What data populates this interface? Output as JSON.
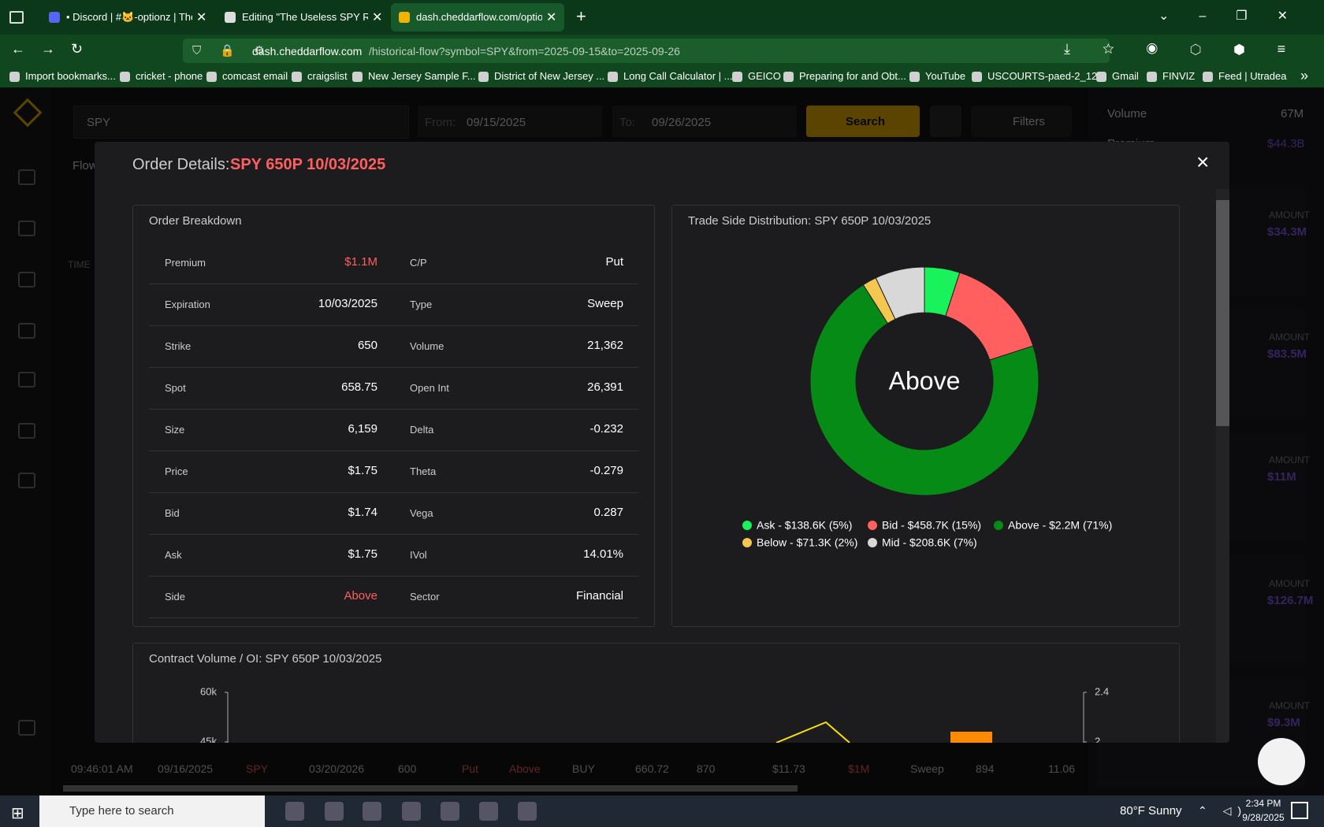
{
  "browser": {
    "tabs": [
      "• Discord | #🐱-optionz | The U",
      "Editing \"The Useless SPY Report",
      "dash.cheddarflow.com/options-"
    ],
    "url_host": "dash.cheddarflow.com",
    "url_path": "/historical-flow?symbol=SPY&from=2025-09-15&to=2025-09-26",
    "bookmarks": [
      "Import bookmarks...",
      "cricket - phone",
      "comcast email",
      "craigslist",
      "New Jersey Sample F...",
      "District of New Jersey ...",
      "Long Call Calculator | ...",
      "GEICO",
      "Preparing for and Obt...",
      "YouTube",
      "USCOURTS-paed-2_12...",
      "Gmail",
      "FINVIZ",
      "Feed | Utradea"
    ]
  },
  "background": {
    "search": "SPY",
    "from_label": "From:",
    "from": "09/15/2025",
    "to_label": "To:",
    "to": "09/26/2025",
    "search_button": "Search",
    "filters": "Filters",
    "volume_label": "Volume",
    "volume": "67M",
    "premium_label": "Premium",
    "premium": "$44.3B",
    "flow_tab": "Flow",
    "time_header": "TIME",
    "amount_label": "AMOUNT",
    "amounts": [
      "$34.3M",
      "$83.5M",
      "$11M",
      "$126.7M",
      "$9.3M"
    ],
    "bottom_row": [
      "09:46:01 AM",
      "09/16/2025",
      "SPY",
      "03/20/2026",
      "600",
      "Put",
      "Above",
      "BUY",
      "660.72",
      "870",
      "$11.73",
      "$1M",
      "Sweep",
      "894",
      "11.06"
    ]
  },
  "modal": {
    "title_prefix": "Order Details:",
    "title_contract": "SPY 650P 10/03/2025",
    "close": "×",
    "breakdown": {
      "title": "Order Breakdown",
      "rows": [
        [
          "Premium",
          "$1.1M",
          "C/P",
          "Put"
        ],
        [
          "Expiration",
          "10/03/2025",
          "Type",
          "Sweep"
        ],
        [
          "Strike",
          "650",
          "Volume",
          "21,362"
        ],
        [
          "Spot",
          "658.75",
          "Open Int",
          "26,391"
        ],
        [
          "Size",
          "6,159",
          "Delta",
          "-0.232"
        ],
        [
          "Price",
          "$1.75",
          "Theta",
          "-0.279"
        ],
        [
          "Bid",
          "$1.74",
          "Vega",
          "0.287"
        ],
        [
          "Ask",
          "$1.75",
          "IVol",
          "14.01%"
        ],
        [
          "Side",
          "Above",
          "Sector",
          "Financial"
        ]
      ]
    }
  },
  "chart_data": [
    {
      "type": "pie",
      "title": "Trade Side Distribution: SPY 650P 10/03/2025",
      "center_label": "Above",
      "categories": [
        "Ask",
        "Bid",
        "Above",
        "Below",
        "Mid"
      ],
      "values": [
        5,
        15,
        71,
        2,
        7
      ],
      "value_labels": [
        "Ask - $138.6K (5%)",
        "Bid - $458.7K (15%)",
        "Above - $2.2M (71%)",
        "Below - $71.3K (2%)",
        "Mid - $208.6K (7%)"
      ],
      "colors": [
        "#19f25a",
        "#ff5f5f",
        "#068c16",
        "#f4c751",
        "#d8d8d8"
      ]
    },
    {
      "type": "line",
      "title": "Contract Volume / OI: SPY 650P 10/03/2025",
      "ylim": [
        0,
        60000
      ],
      "yticks": [
        {
          "value": 60000,
          "label": "60k"
        },
        {
          "value": 45000,
          "label": "45k"
        }
      ],
      "y2lim": [
        0.8,
        2.4
      ],
      "y2ticks": [
        2.4,
        2
      ]
    }
  ],
  "taskbar": {
    "search": "Type here to search",
    "weather": "80°F Sunny",
    "time": "2:34 PM",
    "date": "9/28/2025"
  }
}
